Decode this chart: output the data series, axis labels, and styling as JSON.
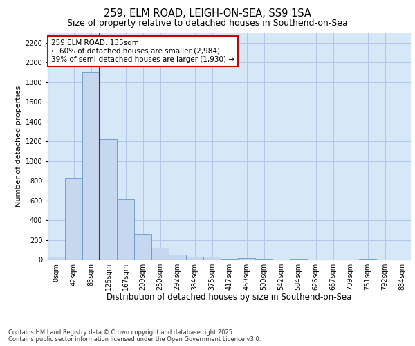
{
  "title1": "259, ELM ROAD, LEIGH-ON-SEA, SS9 1SA",
  "title2": "Size of property relative to detached houses in Southend-on-Sea",
  "xlabel": "Distribution of detached houses by size in Southend-on-Sea",
  "ylabel": "Number of detached properties",
  "bar_labels": [
    "0sqm",
    "42sqm",
    "83sqm",
    "125sqm",
    "167sqm",
    "209sqm",
    "250sqm",
    "292sqm",
    "334sqm",
    "375sqm",
    "417sqm",
    "459sqm",
    "500sqm",
    "542sqm",
    "584sqm",
    "626sqm",
    "667sqm",
    "709sqm",
    "751sqm",
    "792sqm",
    "834sqm"
  ],
  "bar_values": [
    30,
    830,
    1900,
    1220,
    610,
    260,
    120,
    50,
    25,
    25,
    5,
    15,
    5,
    0,
    10,
    3,
    0,
    0,
    5,
    0,
    0
  ],
  "bar_color": "#c5d8f0",
  "bar_edge_color": "#6699cc",
  "background_color": "#d6e8f7",
  "grid_color": "#b0c8e8",
  "vline_color": "#cc0000",
  "annotation_text": "259 ELM ROAD: 135sqm\n← 60% of detached houses are smaller (2,984)\n39% of semi-detached houses are larger (1,930) →",
  "annotation_box_color": "#cc0000",
  "annotation_bg": "#ffffff",
  "ylim": [
    0,
    2300
  ],
  "yticks": [
    0,
    200,
    400,
    600,
    800,
    1000,
    1200,
    1400,
    1600,
    1800,
    2000,
    2200
  ],
  "footnote": "Contains HM Land Registry data © Crown copyright and database right 2025.\nContains public sector information licensed under the Open Government Licence v3.0.",
  "title1_fontsize": 10.5,
  "title2_fontsize": 9,
  "xlabel_fontsize": 8.5,
  "ylabel_fontsize": 8,
  "tick_fontsize": 7,
  "annot_fontsize": 7.5,
  "footnote_fontsize": 6
}
